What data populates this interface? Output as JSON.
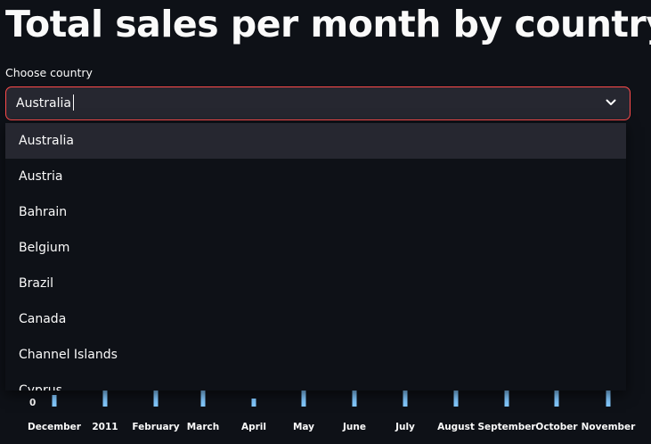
{
  "page": {
    "title": "Total sales per month by country"
  },
  "country_select": {
    "label": "Choose country",
    "value": "Australia",
    "options": [
      "Australia",
      "Austria",
      "Bahrain",
      "Belgium",
      "Brazil",
      "Canada",
      "Channel Islands",
      "Cyprus"
    ],
    "highlighted_index": 0
  },
  "chart_data": {
    "type": "bar",
    "categories": [
      "December",
      "2011",
      "February",
      "March",
      "April",
      "May",
      "June",
      "July",
      "August",
      "September",
      "October",
      "November"
    ],
    "y_tick_labels": [
      "0"
    ],
    "bar_color": "#83c9ff"
  }
}
